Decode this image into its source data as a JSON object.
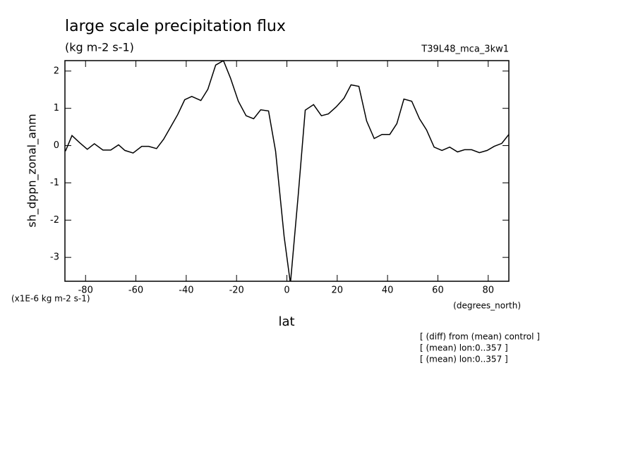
{
  "chart_data": {
    "type": "line",
    "title": "large scale precipitation flux",
    "subtitle": "(kg m-2 s-1)",
    "dataset_label": "T39L48_mca_3kw1",
    "y_label": "sh_dppn_zonal_anm",
    "y_units": "(x1E-6 kg m-2 s-1)",
    "x_label": "lat",
    "x_units": "(degrees_north)",
    "notes": [
      "[ (diff) from (mean) control ]",
      "[ (mean) lon:0..357 ]",
      "[ (mean) lon:0..357 ]"
    ],
    "x": [
      -88.0,
      -85.4,
      -82.4,
      -79.3,
      -76.5,
      -73.1,
      -70.0,
      -66.9,
      -64.4,
      -61.1,
      -57.7,
      -54.9,
      -51.8,
      -49.0,
      -46.2,
      -43.4,
      -40.6,
      -37.8,
      -34.2,
      -31.4,
      -28.3,
      -25.2,
      -22.4,
      -19.3,
      -16.2,
      -13.2,
      -10.4,
      -7.3,
      -4.5,
      -1.1,
      1.4,
      4.5,
      7.3,
      10.6,
      13.7,
      16.5,
      19.6,
      22.7,
      25.5,
      28.6,
      31.7,
      34.7,
      37.8,
      40.9,
      43.7,
      46.5,
      49.6,
      52.7,
      55.5,
      58.5,
      61.6,
      64.7,
      67.8,
      70.6,
      73.4,
      76.5,
      79.6,
      82.4,
      85.4,
      88.2
    ],
    "series": [
      {
        "color": "#000000",
        "values": [
          -0.15,
          0.27,
          0.08,
          -0.1,
          0.05,
          -0.12,
          -0.12,
          0.02,
          -0.13,
          -0.2,
          -0.02,
          -0.02,
          -0.08,
          0.17,
          0.5,
          0.83,
          1.23,
          1.32,
          1.21,
          1.51,
          2.16,
          2.28,
          1.81,
          1.19,
          0.8,
          0.72,
          0.96,
          0.93,
          -0.15,
          -2.44,
          -3.7,
          -1.34,
          0.95,
          1.1,
          0.8,
          0.85,
          1.04,
          1.27,
          1.63,
          1.59,
          0.66,
          0.19,
          0.3,
          0.3,
          0.59,
          1.25,
          1.19,
          0.72,
          0.42,
          -0.04,
          -0.13,
          -0.04,
          -0.17,
          -0.11,
          -0.11,
          -0.19,
          -0.13,
          -0.02,
          0.06,
          0.3
        ]
      }
    ],
    "xlim": [
      -88.2,
      88.2
    ],
    "xticks": [
      -80,
      -60,
      -40,
      -20,
      0,
      20,
      40,
      60,
      80
    ],
    "ylim": [
      -3.64,
      2.28
    ],
    "yticks": [
      -3,
      -2,
      -1,
      0,
      1,
      2
    ]
  }
}
